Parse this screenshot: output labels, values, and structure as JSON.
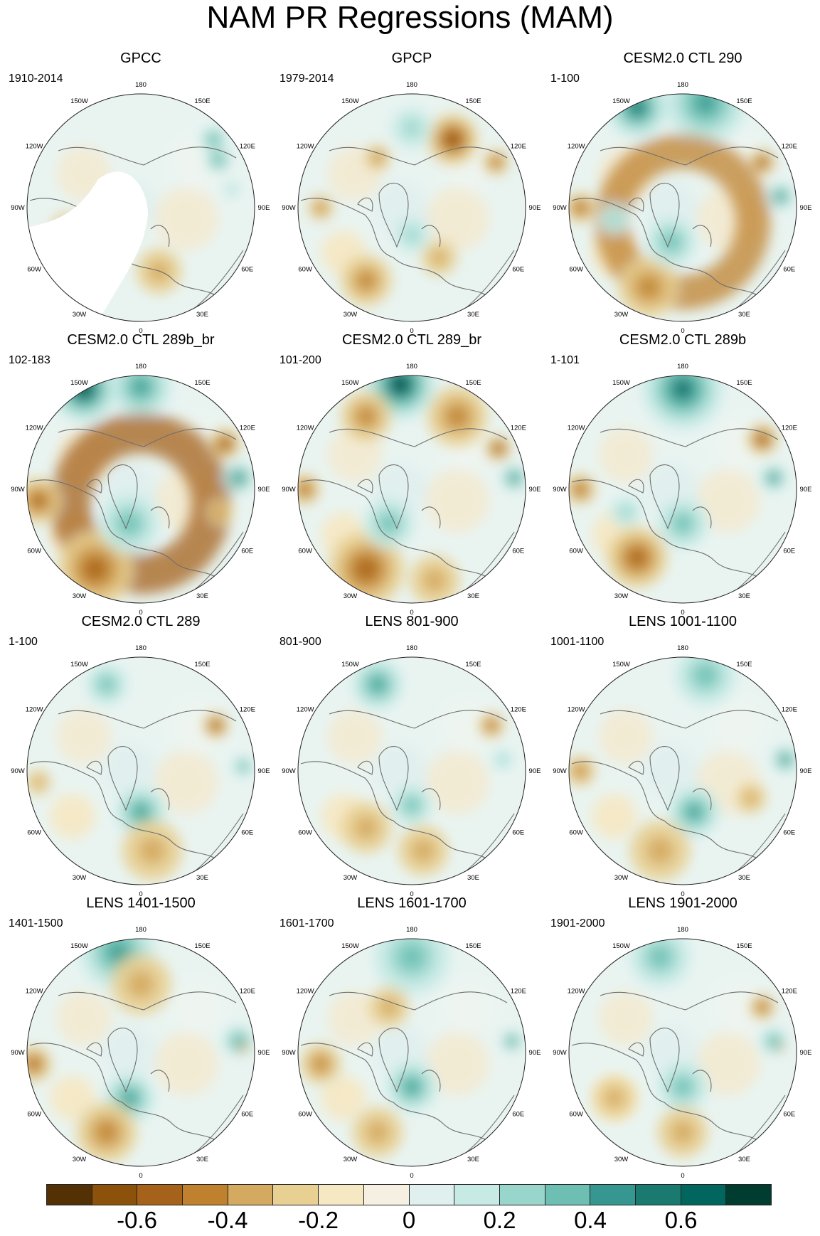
{
  "title": "NAM PR Regressions (MAM)",
  "lon_labels": [
    "180",
    "150E",
    "120E",
    "90E",
    "60E",
    "30E",
    "0",
    "30W",
    "60W",
    "90W",
    "120W",
    "150W"
  ],
  "panels": [
    {
      "title": "GPCC",
      "years": "1910-2014",
      "mask": true,
      "features": [
        [
          "p",
          0.84,
          0.29,
          0.05,
          0.7
        ],
        [
          "p",
          0.82,
          0.2,
          0.05,
          0.6
        ],
        [
          "n",
          0.58,
          0.78,
          0.09,
          0.35
        ],
        [
          "n",
          0.18,
          0.6,
          0.07,
          0.25
        ],
        [
          "p",
          0.9,
          0.42,
          0.03,
          0.4
        ]
      ]
    },
    {
      "title": "GPCP",
      "years": "1979-2014",
      "mask": false,
      "features": [
        [
          "n",
          0.68,
          0.2,
          0.1,
          0.8
        ],
        [
          "n",
          0.87,
          0.3,
          0.05,
          0.7
        ],
        [
          "n",
          0.35,
          0.28,
          0.05,
          0.5
        ],
        [
          "n",
          0.3,
          0.82,
          0.1,
          0.5
        ],
        [
          "n",
          0.62,
          0.72,
          0.07,
          0.4
        ],
        [
          "p",
          0.5,
          0.62,
          0.07,
          0.35
        ],
        [
          "n",
          0.1,
          0.5,
          0.05,
          0.5
        ],
        [
          "p",
          0.5,
          0.15,
          0.08,
          0.3
        ]
      ]
    },
    {
      "title": "CESM2.0 CTL 290",
      "years": "1-100",
      "mask": false,
      "features": [
        [
          "p",
          0.3,
          0.06,
          0.12,
          0.9
        ],
        [
          "p",
          0.6,
          0.04,
          0.16,
          0.6
        ],
        [
          "n",
          0.5,
          0.22,
          0.3,
          0.55,
          "ring"
        ],
        [
          "n",
          0.85,
          0.3,
          0.05,
          0.8
        ],
        [
          "p",
          0.93,
          0.45,
          0.05,
          0.8
        ],
        [
          "n",
          0.05,
          0.5,
          0.06,
          0.6
        ],
        [
          "n",
          0.35,
          0.85,
          0.12,
          0.55
        ],
        [
          "p",
          0.45,
          0.65,
          0.1,
          0.45
        ],
        [
          "p",
          0.2,
          0.55,
          0.06,
          0.4
        ]
      ]
    },
    {
      "title": "CESM2.0 CTL 289b_br",
      "years": "102-183",
      "mask": false,
      "features": [
        [
          "p",
          0.25,
          0.06,
          0.13,
          1.0
        ],
        [
          "p",
          0.5,
          0.05,
          0.12,
          0.7
        ],
        [
          "n",
          0.5,
          0.2,
          0.35,
          0.65,
          "ring"
        ],
        [
          "n",
          0.87,
          0.3,
          0.06,
          0.9
        ],
        [
          "p",
          0.93,
          0.45,
          0.06,
          0.9
        ],
        [
          "n",
          0.05,
          0.55,
          0.09,
          0.7
        ],
        [
          "n",
          0.3,
          0.85,
          0.15,
          0.7
        ],
        [
          "p",
          0.45,
          0.65,
          0.12,
          0.5
        ],
        [
          "n",
          0.85,
          0.6,
          0.05,
          0.5
        ]
      ]
    },
    {
      "title": "CESM2.0 CTL 289_br",
      "years": "101-200",
      "mask": false,
      "features": [
        [
          "p",
          0.45,
          0.04,
          0.14,
          1.0
        ],
        [
          "n",
          0.3,
          0.18,
          0.1,
          0.5
        ],
        [
          "n",
          0.7,
          0.18,
          0.12,
          0.55
        ],
        [
          "n",
          0.88,
          0.32,
          0.05,
          0.9
        ],
        [
          "p",
          0.95,
          0.45,
          0.05,
          0.9
        ],
        [
          "n",
          0.03,
          0.5,
          0.06,
          0.6
        ],
        [
          "n",
          0.3,
          0.85,
          0.15,
          0.65
        ],
        [
          "n",
          0.6,
          0.9,
          0.1,
          0.4
        ],
        [
          "p",
          0.4,
          0.65,
          0.1,
          0.5
        ]
      ]
    },
    {
      "title": "CESM2.0 CTL 289b",
      "years": "1-101",
      "mask": false,
      "features": [
        [
          "p",
          0.5,
          0.06,
          0.16,
          0.75
        ],
        [
          "n",
          0.85,
          0.28,
          0.06,
          0.9
        ],
        [
          "p",
          0.9,
          0.45,
          0.05,
          0.8
        ],
        [
          "n",
          0.05,
          0.5,
          0.06,
          0.6
        ],
        [
          "n",
          0.3,
          0.8,
          0.12,
          0.7
        ],
        [
          "p",
          0.5,
          0.65,
          0.1,
          0.5
        ],
        [
          "p",
          0.25,
          0.6,
          0.06,
          0.35
        ]
      ]
    },
    {
      "title": "CESM2.0 CTL 289",
      "years": "1-100",
      "mask": false,
      "features": [
        [
          "p",
          0.35,
          0.12,
          0.08,
          0.5
        ],
        [
          "n",
          0.83,
          0.3,
          0.05,
          0.8
        ],
        [
          "p",
          0.95,
          0.48,
          0.04,
          0.6
        ],
        [
          "p",
          0.5,
          0.68,
          0.1,
          0.6
        ],
        [
          "n",
          0.55,
          0.85,
          0.12,
          0.4
        ],
        [
          "n",
          0.05,
          0.55,
          0.05,
          0.35
        ]
      ]
    },
    {
      "title": "LENS 801-900",
      "years": "801-900",
      "mask": false,
      "features": [
        [
          "p",
          0.35,
          0.12,
          0.1,
          0.6
        ],
        [
          "n",
          0.85,
          0.3,
          0.05,
          0.7
        ],
        [
          "p",
          0.9,
          0.45,
          0.04,
          0.4
        ],
        [
          "p",
          0.5,
          0.65,
          0.08,
          0.45
        ],
        [
          "n",
          0.3,
          0.75,
          0.1,
          0.35
        ],
        [
          "n",
          0.55,
          0.85,
          0.1,
          0.3
        ]
      ]
    },
    {
      "title": "LENS 1001-1100",
      "years": "1001-1100",
      "mask": false,
      "features": [
        [
          "p",
          0.6,
          0.08,
          0.12,
          0.5
        ],
        [
          "p",
          0.95,
          0.45,
          0.05,
          0.9
        ],
        [
          "p",
          0.55,
          0.68,
          0.1,
          0.65
        ],
        [
          "n",
          0.05,
          0.5,
          0.06,
          0.5
        ],
        [
          "n",
          0.4,
          0.85,
          0.12,
          0.4
        ],
        [
          "n",
          0.8,
          0.62,
          0.06,
          0.4
        ]
      ]
    },
    {
      "title": "LENS 1401-1500",
      "years": "1401-1500",
      "mask": false,
      "features": [
        [
          "p",
          0.4,
          0.06,
          0.15,
          0.7
        ],
        [
          "n",
          0.5,
          0.2,
          0.12,
          0.4
        ],
        [
          "p",
          0.93,
          0.45,
          0.06,
          0.7
        ],
        [
          "n",
          0.95,
          0.48,
          0.02,
          0.9
        ],
        [
          "p",
          0.45,
          0.7,
          0.1,
          0.7
        ],
        [
          "n",
          0.03,
          0.55,
          0.07,
          0.6
        ],
        [
          "n",
          0.35,
          0.85,
          0.12,
          0.5
        ]
      ]
    },
    {
      "title": "LENS 1601-1700",
      "years": "1601-1700",
      "mask": false,
      "features": [
        [
          "p",
          0.5,
          0.08,
          0.15,
          0.55
        ],
        [
          "p",
          0.94,
          0.45,
          0.04,
          0.9
        ],
        [
          "p",
          0.5,
          0.65,
          0.1,
          0.6
        ],
        [
          "n",
          0.1,
          0.55,
          0.08,
          0.5
        ],
        [
          "n",
          0.35,
          0.85,
          0.1,
          0.35
        ],
        [
          "n",
          0.4,
          0.3,
          0.08,
          0.3
        ]
      ]
    },
    {
      "title": "LENS 1901-2000",
      "years": "1901-2000",
      "mask": false,
      "features": [
        [
          "p",
          0.4,
          0.08,
          0.12,
          0.5
        ],
        [
          "n",
          0.85,
          0.3,
          0.05,
          0.6
        ],
        [
          "p",
          0.9,
          0.45,
          0.05,
          0.6
        ],
        [
          "n",
          0.93,
          0.48,
          0.015,
          1.0
        ],
        [
          "p",
          0.5,
          0.65,
          0.1,
          0.55
        ],
        [
          "n",
          0.2,
          0.7,
          0.08,
          0.35
        ],
        [
          "n",
          0.5,
          0.85,
          0.1,
          0.35
        ]
      ]
    }
  ],
  "colorbar": {
    "colors": [
      "#543005",
      "#8c510a",
      "#a6611a",
      "#bf812d",
      "#d4aa60",
      "#e8cf92",
      "#f6e8c3",
      "#f5f0e1",
      "#e0f0ee",
      "#c7eae5",
      "#98d6cb",
      "#6cbfb2",
      "#35978f",
      "#1b7a70",
      "#01665e",
      "#003c30"
    ],
    "labels": [
      "-0.6",
      "-0.4",
      "-0.2",
      "0",
      "0.2",
      "0.4",
      "0.6"
    ]
  }
}
